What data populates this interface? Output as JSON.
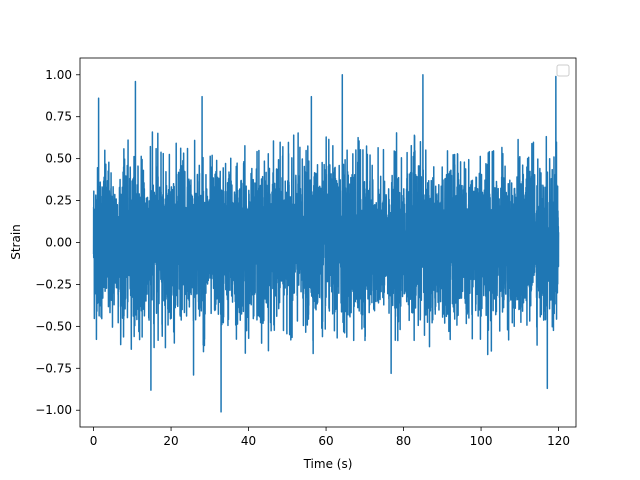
{
  "chart_data": {
    "type": "line",
    "title": "",
    "xlabel": "Time (s)",
    "ylabel": "Strain",
    "xlim": [
      -3.5,
      124.5
    ],
    "ylim": [
      -1.1,
      1.1
    ],
    "x_ticks": [
      0,
      20,
      40,
      60,
      80,
      100,
      120
    ],
    "y_ticks": [
      -1.0,
      -0.75,
      -0.5,
      -0.25,
      0.0,
      0.25,
      0.5,
      0.75,
      1.0
    ],
    "x_tick_labels": [
      "0",
      "20",
      "40",
      "60",
      "80",
      "100",
      "120"
    ],
    "y_tick_labels": [
      "−1.00",
      "−0.75",
      "−0.50",
      "−0.25",
      "0.00",
      "0.25",
      "0.50",
      "0.75",
      "1.00"
    ],
    "grid": false,
    "legend": {
      "location": "upper right",
      "entries": []
    },
    "series": [
      {
        "color": "#1f77b4",
        "x_range": [
          0,
          120
        ],
        "samples": 6000,
        "description_values": {
          "typical_envelope": [
            -0.55,
            0.55
          ],
          "max": 1.0,
          "min": -1.01
        },
        "peaks": [
          {
            "x": 1.3,
            "y": 0.86
          },
          {
            "x": 10.8,
            "y": 0.96
          },
          {
            "x": 28.0,
            "y": 0.87
          },
          {
            "x": 56.2,
            "y": 0.87
          },
          {
            "x": 64.2,
            "y": 1.0
          },
          {
            "x": 85.0,
            "y": 1.0
          },
          {
            "x": 119.3,
            "y": 0.99
          },
          {
            "x": 14.8,
            "y": -0.88
          },
          {
            "x": 32.9,
            "y": -1.01
          },
          {
            "x": 117.1,
            "y": -0.87
          },
          {
            "x": 76.8,
            "y": -0.78
          },
          {
            "x": 25.8,
            "y": -0.79
          }
        ]
      }
    ]
  }
}
